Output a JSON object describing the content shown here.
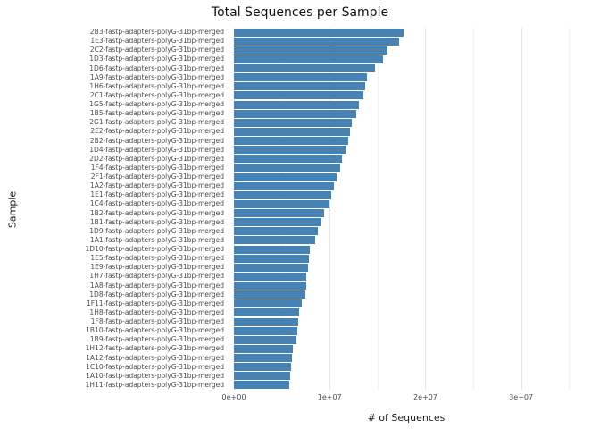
{
  "title": "Total Sequences per Sample",
  "chart_data": {
    "type": "bar",
    "orientation": "horizontal",
    "title": "Total Sequences per Sample",
    "xlabel": "# of Sequences",
    "ylabel": "Sample",
    "xlim": [
      0,
      36000000
    ],
    "grid": true,
    "legend": "none",
    "bar_color": "#4682B4",
    "x_ticks": [
      {
        "value": 0,
        "label": "0e+00"
      },
      {
        "value": 10000000,
        "label": "1e+07"
      },
      {
        "value": 20000000,
        "label": "2e+07"
      },
      {
        "value": 30000000,
        "label": "3e+07"
      }
    ],
    "categories": [
      "2B3-fastp-adapters-polyG-31bp-merged",
      "1E3-fastp-adapters-polyG-31bp-merged",
      "2C2-fastp-adapters-polyG-31bp-merged",
      "1D3-fastp-adapters-polyG-31bp-merged",
      "1D6-fastp-adapters-polyG-31bp-merged",
      "1A9-fastp-adapters-polyG-31bp-merged",
      "1H6-fastp-adapters-polyG-31bp-merged",
      "2C1-fastp-adapters-polyG-31bp-merged",
      "1G5-fastp-adapters-polyG-31bp-merged",
      "1B5-fastp-adapters-polyG-31bp-merged",
      "2G1-fastp-adapters-polyG-31bp-merged",
      "2E2-fastp-adapters-polyG-31bp-merged",
      "2B2-fastp-adapters-polyG-31bp-merged",
      "1D4-fastp-adapters-polyG-31bp-merged",
      "2D2-fastp-adapters-polyG-31bp-merged",
      "1F4-fastp-adapters-polyG-31bp-merged",
      "2F1-fastp-adapters-polyG-31bp-merged",
      "1A2-fastp-adapters-polyG-31bp-merged",
      "1E1-fastp-adapters-polyG-31bp-merged",
      "1C4-fastp-adapters-polyG-31bp-merged",
      "1B2-fastp-adapters-polyG-31bp-merged",
      "1B1-fastp-adapters-polyG-31bp-merged",
      "1D9-fastp-adapters-polyG-31bp-merged",
      "1A1-fastp-adapters-polyG-31bp-merged",
      "1D10-fastp-adapters-polyG-31bp-merged",
      "1E5-fastp-adapters-polyG-31bp-merged",
      "1E9-fastp-adapters-polyG-31bp-merged",
      "1H7-fastp-adapters-polyG-31bp-merged",
      "1A8-fastp-adapters-polyG-31bp-merged",
      "1D8-fastp-adapters-polyG-31bp-merged",
      "1F11-fastp-adapters-polyG-31bp-merged",
      "1H8-fastp-adapters-polyG-31bp-merged",
      "1F8-fastp-adapters-polyG-31bp-merged",
      "1B10-fastp-adapters-polyG-31bp-merged",
      "1B9-fastp-adapters-polyG-31bp-merged",
      "1H12-fastp-adapters-polyG-31bp-merged",
      "1A12-fastp-adapters-polyG-31bp-merged",
      "1C10-fastp-adapters-polyG-31bp-merged",
      "1A10-fastp-adapters-polyG-31bp-merged",
      "1H11-fastp-adapters-polyG-31bp-merged"
    ],
    "values": [
      17700000,
      17300000,
      16000000,
      15600000,
      14700000,
      13900000,
      13700000,
      13500000,
      13100000,
      12800000,
      12300000,
      12100000,
      11900000,
      11700000,
      11300000,
      11100000,
      10700000,
      10400000,
      10200000,
      10000000,
      9400000,
      9100000,
      8800000,
      8500000,
      7900000,
      7800000,
      7700000,
      7600000,
      7600000,
      7500000,
      7100000,
      6800000,
      6700000,
      6600000,
      6500000,
      6200000,
      6100000,
      6000000,
      5900000,
      5800000
    ]
  }
}
